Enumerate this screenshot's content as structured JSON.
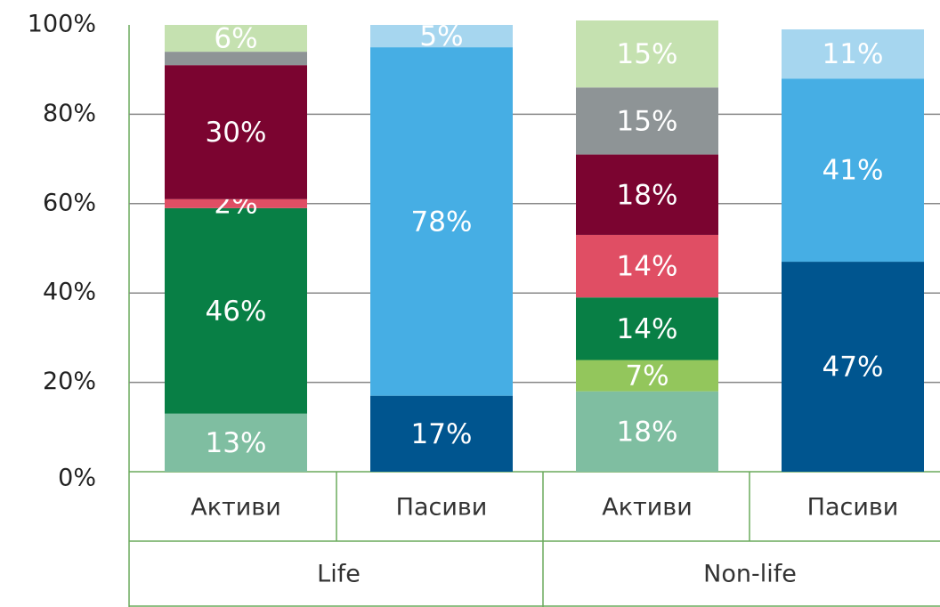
{
  "chart_data": {
    "type": "stacked_bar",
    "categories": [
      "Активи",
      "Пасиви",
      "Активи",
      "Пасиви"
    ],
    "groups": [
      "Life",
      "Non-life"
    ],
    "ylim": [
      0,
      100
    ],
    "yticks": [
      {
        "value": 0,
        "label": "0%"
      },
      {
        "value": 20,
        "label": "20%"
      },
      {
        "value": 40,
        "label": "40%"
      },
      {
        "value": 60,
        "label": "60%"
      },
      {
        "value": 80,
        "label": "80%"
      },
      {
        "value": 100,
        "label": "100%"
      }
    ],
    "grid": true,
    "series": [
      {
        "color": "#7fbea1",
        "values": [
          13,
          null,
          18,
          null
        ],
        "value_labels": [
          "13%",
          null,
          "18%",
          null
        ]
      },
      {
        "color": "#00558f",
        "values": [
          null,
          17,
          null,
          47
        ],
        "value_labels": [
          null,
          "17%",
          null,
          "47%"
        ]
      },
      {
        "color": "#93c65c",
        "values": [
          null,
          null,
          7,
          null
        ],
        "value_labels": [
          null,
          null,
          "7%",
          null
        ]
      },
      {
        "color": "#087f45",
        "values": [
          46,
          null,
          14,
          null
        ],
        "value_labels": [
          "46%",
          null,
          "14%",
          null
        ]
      },
      {
        "color": "#e04e64",
        "values": [
          2,
          null,
          14,
          null
        ],
        "value_labels": [
          "2%",
          null,
          "14%",
          null
        ]
      },
      {
        "color": "#7b0430",
        "values": [
          30,
          null,
          18,
          null
        ],
        "value_labels": [
          "30%",
          null,
          "18%",
          null
        ]
      },
      {
        "color": "#46aee4",
        "values": [
          null,
          78,
          null,
          41
        ],
        "value_labels": [
          null,
          "78%",
          null,
          "41%"
        ]
      },
      {
        "color": "#8e9496",
        "values": [
          3,
          null,
          15,
          null
        ],
        "value_labels": [
          null,
          null,
          "15%",
          null
        ]
      },
      {
        "color": "#c5e1b0",
        "values": [
          6,
          null,
          15,
          null
        ],
        "value_labels": [
          "6%",
          null,
          "15%",
          null
        ]
      },
      {
        "color": "#a6d6ef",
        "values": [
          null,
          5,
          null,
          11
        ],
        "value_labels": [
          null,
          "5%",
          null,
          "11%"
        ]
      }
    ]
  }
}
